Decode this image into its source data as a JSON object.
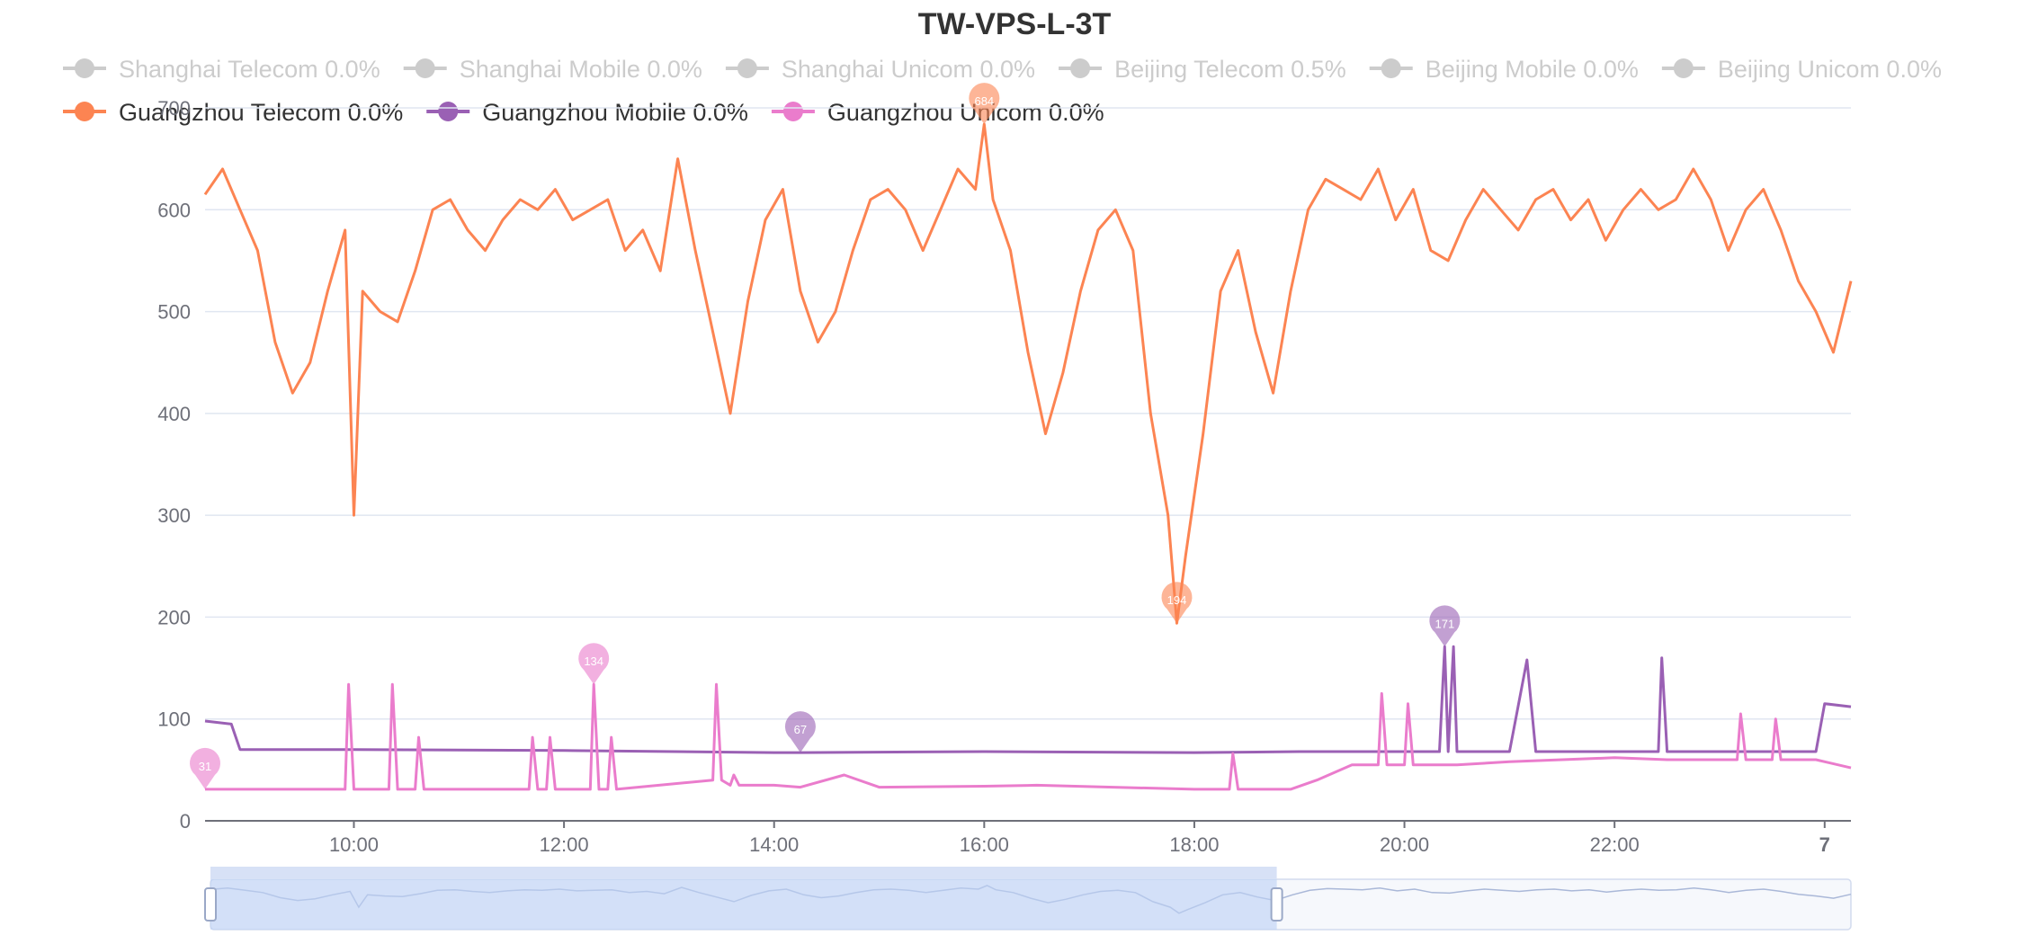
{
  "colors": {
    "Guangzhou Telecom": "#fc8452",
    "Guangzhou Mobile": "#9a60b4",
    "Guangzhou Unicom": "#ea7ccc",
    "inactive": "#cccccc",
    "grid": "#e0e6f1",
    "axis": "#6e7079"
  },
  "chart_data": {
    "type": "line",
    "title": "TW-VPS-L-3T",
    "legend": [
      {
        "label": "Shanghai Telecom 0.0%",
        "active": false
      },
      {
        "label": "Shanghai Mobile 0.0%",
        "active": false
      },
      {
        "label": "Shanghai Unicom 0.0%",
        "active": false
      },
      {
        "label": "Beijing Telecom 0.5%",
        "active": false
      },
      {
        "label": "Beijing Mobile 0.0%",
        "active": false
      },
      {
        "label": "Beijing Unicom 0.0%",
        "active": false
      },
      {
        "label": "Guangzhou Telecom 0.0%",
        "active": true
      },
      {
        "label": "Guangzhou Mobile 0.0%",
        "active": true
      },
      {
        "label": "Guangzhou Unicom 0.0%",
        "active": true
      }
    ],
    "legend_position": "top",
    "x_range": [
      "08:35",
      "00:15"
    ],
    "x_ticks": [
      "10:00",
      "12:00",
      "14:00",
      "16:00",
      "18:00",
      "20:00",
      "22:00",
      "7"
    ],
    "y_ticks": [
      "0",
      "100",
      "200",
      "300",
      "400",
      "500",
      "600",
      "700"
    ],
    "ylim": [
      0,
      700
    ],
    "grid": true,
    "series": [
      {
        "name": "Guangzhou Telecom 0.0%",
        "x": [
          "08:35",
          "08:45",
          "08:55",
          "09:05",
          "09:15",
          "09:25",
          "09:35",
          "09:45",
          "09:55",
          "10:00",
          "10:05",
          "10:15",
          "10:25",
          "10:35",
          "10:45",
          "10:55",
          "11:05",
          "11:15",
          "11:25",
          "11:35",
          "11:45",
          "11:55",
          "12:05",
          "12:15",
          "12:25",
          "12:35",
          "12:45",
          "12:55",
          "13:05",
          "13:15",
          "13:25",
          "13:35",
          "13:45",
          "13:55",
          "14:05",
          "14:15",
          "14:25",
          "14:35",
          "14:45",
          "14:55",
          "15:05",
          "15:15",
          "15:25",
          "15:35",
          "15:45",
          "15:55",
          "16:00",
          "16:05",
          "16:15",
          "16:25",
          "16:35",
          "16:45",
          "16:55",
          "17:05",
          "17:15",
          "17:25",
          "17:35",
          "17:45",
          "17:50",
          "17:55",
          "18:05",
          "18:15",
          "18:25",
          "18:35",
          "18:45",
          "18:55",
          "19:05",
          "19:15",
          "19:25",
          "19:35",
          "19:45",
          "19:55",
          "20:05",
          "20:15",
          "20:25",
          "20:35",
          "20:45",
          "20:55",
          "21:05",
          "21:15",
          "21:25",
          "21:35",
          "21:45",
          "21:55",
          "22:05",
          "22:15",
          "22:25",
          "22:35",
          "22:45",
          "22:55",
          "23:05",
          "23:15",
          "23:25",
          "23:35",
          "23:45",
          "23:55",
          "00:05",
          "00:15"
        ],
        "values": [
          615,
          640,
          600,
          560,
          470,
          420,
          450,
          520,
          580,
          300,
          520,
          500,
          490,
          540,
          600,
          610,
          580,
          560,
          590,
          610,
          600,
          620,
          590,
          600,
          610,
          560,
          580,
          540,
          650,
          560,
          480,
          400,
          510,
          590,
          620,
          520,
          470,
          500,
          560,
          610,
          620,
          600,
          560,
          600,
          640,
          620,
          684,
          610,
          560,
          460,
          380,
          440,
          520,
          580,
          600,
          560,
          400,
          300,
          194,
          260,
          380,
          520,
          560,
          480,
          420,
          520,
          600,
          630,
          620,
          610,
          640,
          590,
          620,
          560,
          550,
          590,
          620,
          600,
          580,
          610,
          620,
          590,
          610,
          570,
          600,
          620,
          600,
          610,
          640,
          610,
          560,
          600,
          620,
          580,
          530,
          500,
          460,
          530
        ]
      },
      {
        "name": "Guangzhou Mobile 0.0%",
        "x": [
          "08:35",
          "08:50",
          "08:55",
          "10:00",
          "12:00",
          "14:00",
          "14:15",
          "16:00",
          "18:00",
          "19:00",
          "19:55",
          "20:20",
          "20:23",
          "20:25",
          "20:28",
          "20:30",
          "21:00",
          "21:10",
          "21:15",
          "22:00",
          "22:25",
          "22:27",
          "22:30",
          "23:55",
          "00:00",
          "00:15"
        ],
        "values": [
          98,
          95,
          70,
          70,
          69,
          67,
          67,
          68,
          67,
          68,
          68,
          68,
          171,
          68,
          171,
          68,
          68,
          158,
          68,
          68,
          68,
          160,
          68,
          68,
          115,
          112
        ]
      },
      {
        "name": "Guangzhou Unicom 0.0%",
        "x": [
          "08:35",
          "09:55",
          "09:57",
          "10:00",
          "10:20",
          "10:22",
          "10:25",
          "10:35",
          "10:37",
          "10:40",
          "11:40",
          "11:42",
          "11:45",
          "11:50",
          "11:52",
          "11:55",
          "12:15",
          "12:17",
          "12:20",
          "12:25",
          "12:27",
          "12:30",
          "13:25",
          "13:27",
          "13:30",
          "13:35",
          "13:37",
          "13:40",
          "14:00",
          "14:15",
          "14:40",
          "15:00",
          "16:00",
          "16:30",
          "18:00",
          "18:20",
          "18:22",
          "18:25",
          "18:55",
          "19:10",
          "19:30",
          "19:45",
          "19:47",
          "19:50",
          "20:00",
          "20:02",
          "20:05",
          "20:30",
          "21:00",
          "21:30",
          "22:00",
          "22:30",
          "23:00",
          "23:10",
          "23:12",
          "23:15",
          "23:30",
          "23:32",
          "23:35",
          "23:55",
          "00:15"
        ],
        "values": [
          31,
          31,
          134,
          31,
          31,
          134,
          31,
          31,
          82,
          31,
          31,
          82,
          31,
          31,
          82,
          31,
          31,
          134,
          31,
          31,
          82,
          31,
          40,
          134,
          40,
          35,
          45,
          35,
          35,
          33,
          45,
          33,
          34,
          35,
          31,
          31,
          66,
          31,
          31,
          40,
          55,
          55,
          125,
          55,
          55,
          115,
          55,
          55,
          58,
          60,
          62,
          60,
          60,
          60,
          105,
          60,
          60,
          100,
          60,
          60,
          52
        ]
      }
    ],
    "mark_points": [
      {
        "series": "Guangzhou Telecom 0.0%",
        "x": "16:00",
        "value": "684",
        "kind": "max"
      },
      {
        "series": "Guangzhou Telecom 0.0%",
        "x": "17:50",
        "value": "194",
        "kind": "min"
      },
      {
        "series": "Guangzhou Mobile 0.0%",
        "x": "20:23",
        "value": "171",
        "kind": "max"
      },
      {
        "series": "Guangzhou Mobile 0.0%",
        "x": "14:15",
        "value": "67",
        "kind": "min"
      },
      {
        "series": "Guangzhou Unicom 0.0%",
        "x": "12:17",
        "value": "134",
        "kind": "max"
      },
      {
        "series": "Guangzhou Unicom 0.0%",
        "x": "08:35",
        "value": "31",
        "kind": "min"
      }
    ],
    "data_zoom": {
      "start_fraction": 0.0,
      "end_fraction": 0.65
    }
  }
}
